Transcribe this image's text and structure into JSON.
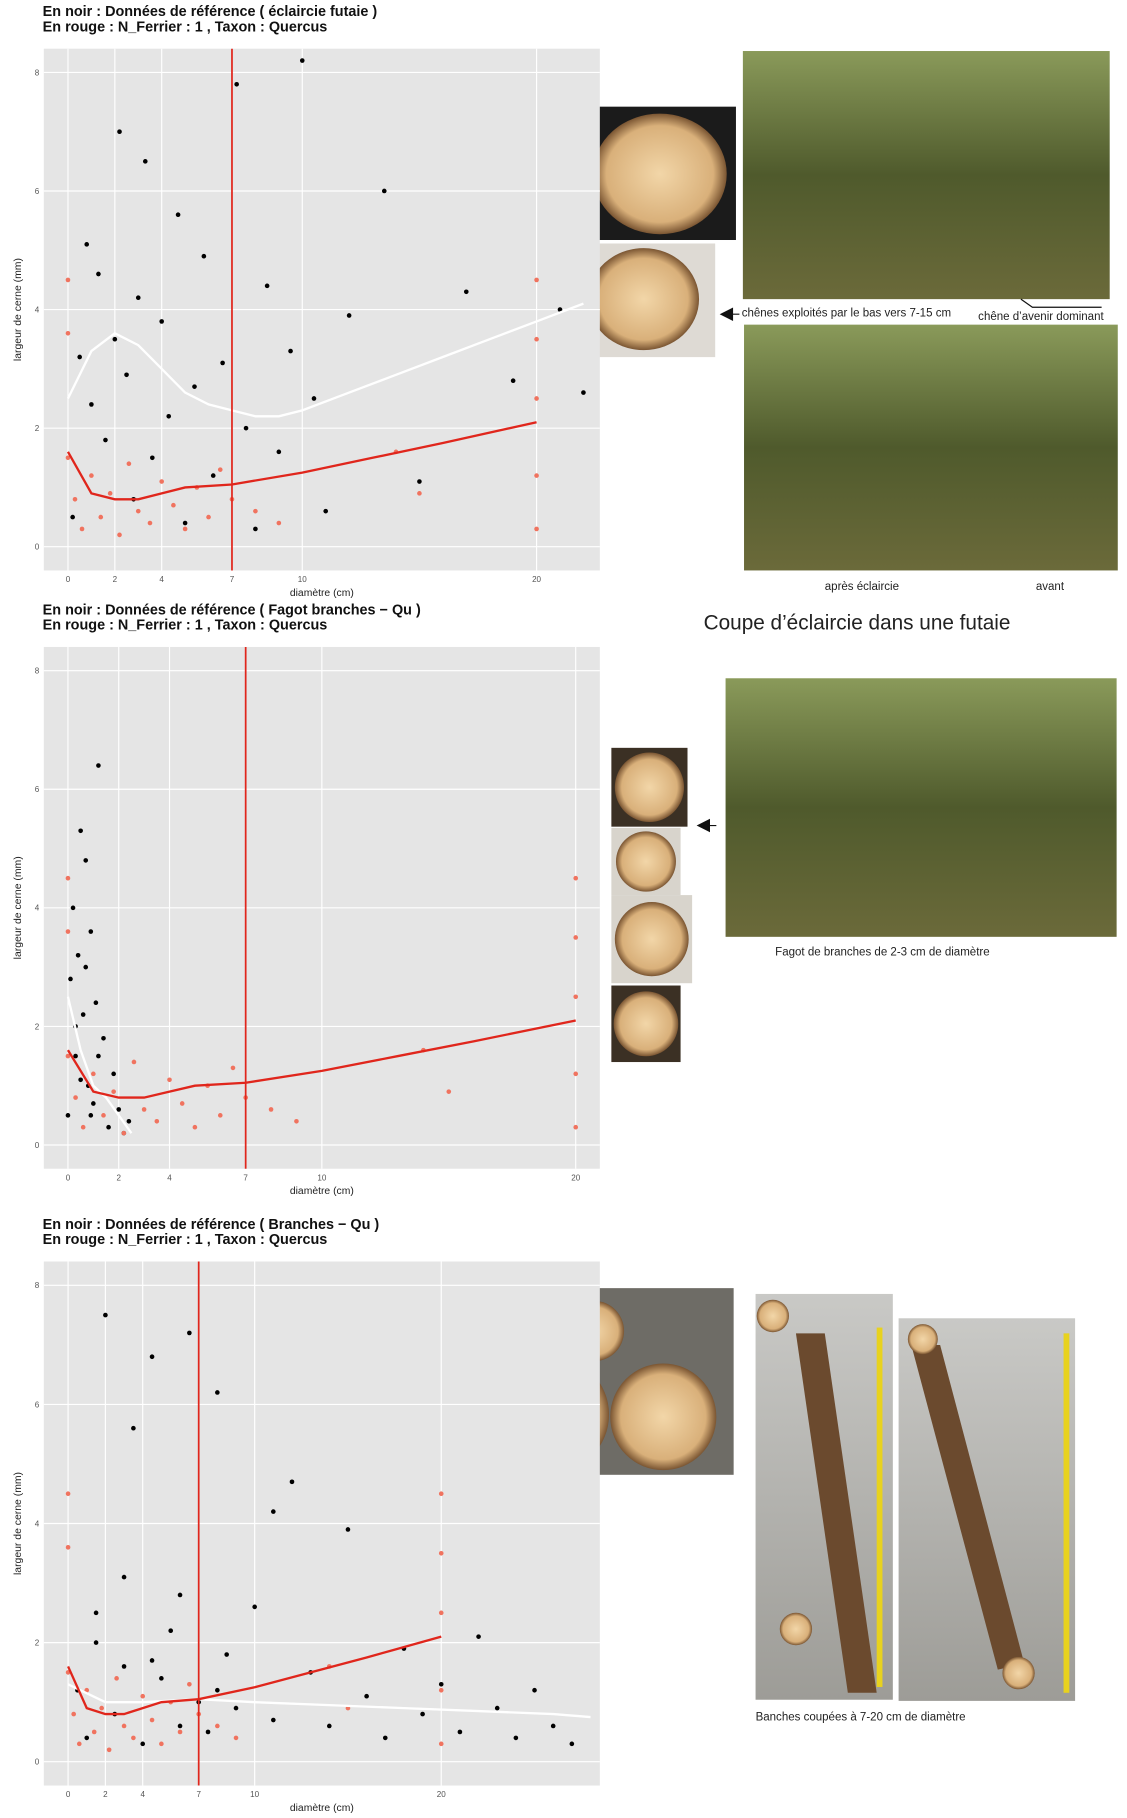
{
  "chart_data": [
    {
      "type": "scatter",
      "title": "En noir : Données de référence ( éclaircie futaie )",
      "subtitle": "En rouge :  N_Ferrier  :  1 ,  Taxon  :  Quercus",
      "xlabel": "diamètre (cm)",
      "ylabel": "largeur de cerne (mm)",
      "xlim": [
        -1.03,
        22.7
      ],
      "ylim": [
        -0.4,
        8.4
      ],
      "xticks": [
        0,
        2,
        4,
        7,
        10,
        20
      ],
      "yticks": [
        0,
        2,
        4,
        6,
        8
      ],
      "grid": true,
      "vline": 7,
      "vline_color": "#e0261c",
      "series": [
        {
          "mode": "points",
          "color": "#000000",
          "x": [
            0.2,
            0.5,
            0.8,
            1,
            1.3,
            1.6,
            2,
            2.2,
            2.5,
            2.8,
            3,
            3.3,
            3.6,
            4,
            4.3,
            4.7,
            5,
            5.4,
            5.8,
            6.2,
            6.6,
            7.2,
            7.6,
            8,
            8.5,
            9,
            9.5,
            10,
            10.5,
            11,
            12,
            13.5,
            15,
            17,
            19,
            21,
            22
          ],
          "values": [
            0.5,
            3.2,
            5.1,
            2.4,
            4.6,
            1.8,
            3.5,
            7.0,
            2.9,
            0.8,
            4.2,
            6.5,
            1.5,
            3.8,
            2.2,
            5.6,
            0.4,
            2.7,
            4.9,
            1.2,
            3.1,
            7.8,
            2.0,
            0.3,
            4.4,
            1.6,
            3.3,
            8.2,
            2.5,
            0.6,
            3.9,
            6.0,
            1.1,
            4.3,
            2.8,
            4.0,
            2.6
          ]
        },
        {
          "mode": "points",
          "color": "#f0735f",
          "x": [
            0,
            0,
            0,
            0.3,
            0.6,
            1,
            1.4,
            1.8,
            2.2,
            2.6,
            3,
            3.5,
            4,
            4.5,
            5,
            5.5,
            6,
            6.5,
            7,
            8,
            9,
            14,
            15,
            20,
            20,
            20,
            20,
            20
          ],
          "values": [
            1.5,
            3.6,
            4.5,
            0.8,
            0.3,
            1.2,
            0.5,
            0.9,
            0.2,
            1.4,
            0.6,
            0.4,
            1.1,
            0.7,
            0.3,
            1.0,
            0.5,
            1.3,
            0.8,
            0.6,
            0.4,
            1.6,
            0.9,
            0.3,
            1.2,
            2.5,
            3.5,
            4.5
          ]
        },
        {
          "mode": "line",
          "color": "#ffffff",
          "x": [
            0,
            1,
            2,
            3,
            4,
            5,
            6,
            7,
            8,
            9,
            10,
            12,
            14,
            16,
            18,
            20,
            22
          ],
          "values": [
            2.5,
            3.3,
            3.6,
            3.4,
            3.0,
            2.6,
            2.4,
            2.3,
            2.2,
            2.2,
            2.3,
            2.6,
            2.9,
            3.2,
            3.5,
            3.8,
            4.1
          ]
        },
        {
          "mode": "line",
          "color": "#e0261c",
          "x": [
            0,
            1,
            2,
            3,
            4,
            5,
            7,
            10,
            13,
            16,
            20
          ],
          "values": [
            1.6,
            0.9,
            0.8,
            0.8,
            0.9,
            1.0,
            1.05,
            1.25,
            1.5,
            1.75,
            2.1
          ]
        }
      ]
    },
    {
      "type": "scatter",
      "title": "En noir : Données de référence ( Fagot branches − Qu )",
      "subtitle": "En rouge :  N_Ferrier  :  1 ,  Taxon  :  Quercus",
      "xlabel": "diamètre (cm)",
      "ylabel": "largeur de cerne (mm)",
      "xlim": [
        -0.95,
        20.95
      ],
      "ylim": [
        -0.4,
        8.4
      ],
      "xticks": [
        0,
        2,
        4,
        7,
        10,
        20
      ],
      "yticks": [
        0,
        2,
        4,
        6,
        8
      ],
      "grid": true,
      "vline": 7,
      "vline_color": "#e0261c",
      "series": [
        {
          "mode": "points",
          "color": "#000000",
          "x": [
            0,
            0.1,
            0.2,
            0.3,
            0.4,
            0.5,
            0.6,
            0.7,
            0.8,
            0.9,
            1,
            1.1,
            1.2,
            1.4,
            1.6,
            1.8,
            2,
            2.2,
            2.4,
            0.3,
            0.5,
            0.7,
            0.9,
            1.2
          ],
          "values": [
            0.5,
            2.8,
            4.0,
            1.5,
            3.2,
            5.3,
            2.2,
            4.8,
            1.0,
            3.6,
            0.7,
            2.4,
            6.4,
            1.8,
            0.3,
            1.2,
            0.6,
            0.2,
            0.4,
            2.0,
            1.1,
            3.0,
            0.5,
            1.5
          ]
        },
        {
          "mode": "points",
          "color": "#f0735f",
          "x": [
            0,
            0,
            0,
            0.3,
            0.6,
            1,
            1.4,
            1.8,
            2.2,
            2.6,
            3,
            3.5,
            4,
            4.5,
            5,
            5.5,
            6,
            6.5,
            7,
            8,
            9,
            14,
            15,
            20,
            20,
            20,
            20,
            20
          ],
          "values": [
            1.5,
            3.6,
            4.5,
            0.8,
            0.3,
            1.2,
            0.5,
            0.9,
            0.2,
            1.4,
            0.6,
            0.4,
            1.1,
            0.7,
            0.3,
            1.0,
            0.5,
            1.3,
            0.8,
            0.6,
            0.4,
            1.6,
            0.9,
            0.3,
            1.2,
            2.5,
            3.5,
            4.5
          ]
        },
        {
          "mode": "line",
          "color": "#ffffff",
          "x": [
            0,
            0.5,
            1,
            1.5,
            2,
            2.5
          ],
          "values": [
            2.5,
            1.6,
            1.0,
            0.8,
            0.5,
            0.2
          ]
        },
        {
          "mode": "line",
          "color": "#e0261c",
          "x": [
            0,
            1,
            2,
            3,
            4,
            5,
            7,
            10,
            13,
            16,
            20
          ],
          "values": [
            1.6,
            0.9,
            0.8,
            0.8,
            0.9,
            1.0,
            1.05,
            1.25,
            1.5,
            1.75,
            2.1
          ]
        }
      ]
    },
    {
      "type": "scatter",
      "title": "En noir : Données de référence ( Branches − Qu )",
      "subtitle": "En rouge :  N_Ferrier  :  1 ,  Taxon  :  Quercus",
      "xlabel": "diamètre (cm)",
      "ylabel": "largeur de cerne (mm)",
      "xlim": [
        -1.3,
        28.5
      ],
      "ylim": [
        -0.4,
        8.4
      ],
      "xticks": [
        0,
        2,
        4,
        7,
        10,
        20
      ],
      "yticks": [
        0,
        2,
        4,
        6,
        8
      ],
      "grid": true,
      "vline": 7,
      "vline_color": "#e0261c",
      "series": [
        {
          "mode": "points",
          "color": "#000000",
          "x": [
            0.5,
            1,
            1.5,
            2,
            2.5,
            3,
            3.5,
            4,
            4.5,
            5,
            5.5,
            6,
            6.5,
            7,
            7.5,
            8,
            8.5,
            9,
            10,
            11,
            12,
            13,
            14,
            15,
            16,
            17,
            18,
            19,
            20,
            21,
            22,
            23,
            24,
            25,
            26,
            27,
            1.5,
            3,
            4.5,
            6,
            8,
            11
          ],
          "values": [
            1.2,
            0.4,
            2.5,
            7.5,
            0.8,
            1.6,
            5.6,
            0.3,
            6.8,
            1.4,
            2.2,
            0.6,
            7.2,
            1.0,
            0.5,
            6.2,
            1.8,
            0.9,
            2.6,
            0.7,
            4.7,
            1.5,
            0.6,
            3.9,
            1.1,
            0.4,
            1.9,
            0.8,
            1.3,
            0.5,
            2.1,
            0.9,
            0.4,
            1.2,
            0.6,
            0.3,
            2.0,
            3.1,
            1.7,
            2.8,
            1.2,
            4.2
          ]
        },
        {
          "mode": "points",
          "color": "#f0735f",
          "x": [
            0,
            0,
            0,
            0.3,
            0.6,
            1,
            1.4,
            1.8,
            2.2,
            2.6,
            3,
            3.5,
            4,
            4.5,
            5,
            5.5,
            6,
            6.5,
            7,
            8,
            9,
            14,
            15,
            20,
            20,
            20,
            20,
            20
          ],
          "values": [
            1.5,
            3.6,
            4.5,
            0.8,
            0.3,
            1.2,
            0.5,
            0.9,
            0.2,
            1.4,
            0.6,
            0.4,
            1.1,
            0.7,
            0.3,
            1.0,
            0.5,
            1.3,
            0.8,
            0.6,
            0.4,
            1.6,
            0.9,
            0.3,
            1.2,
            2.5,
            3.5,
            4.5
          ]
        },
        {
          "mode": "line",
          "color": "#ffffff",
          "x": [
            0,
            2,
            4,
            7,
            10,
            14,
            18,
            22,
            26,
            28
          ],
          "values": [
            1.3,
            1.0,
            1.0,
            1.05,
            1.0,
            0.95,
            0.9,
            0.85,
            0.8,
            0.75
          ]
        },
        {
          "mode": "line",
          "color": "#e0261c",
          "x": [
            0,
            1,
            2,
            3,
            4,
            5,
            7,
            10,
            13,
            16,
            20
          ],
          "values": [
            1.6,
            0.9,
            0.8,
            0.8,
            0.9,
            1.0,
            1.05,
            1.25,
            1.5,
            1.75,
            2.1
          ]
        }
      ]
    }
  ],
  "captions": {
    "oaks": "chênes exploités par le bas vers 7-15 cm",
    "dominant": "chêne d’avenir dominant",
    "after": "après éclaircie",
    "before": "avant",
    "heading": "Coupe d’éclaircie dans une futaie",
    "fagot": "Fagot de branches de 2-3 cm de diamètre",
    "branches": "Banches coupées à 7-20 cm de diamètre"
  }
}
